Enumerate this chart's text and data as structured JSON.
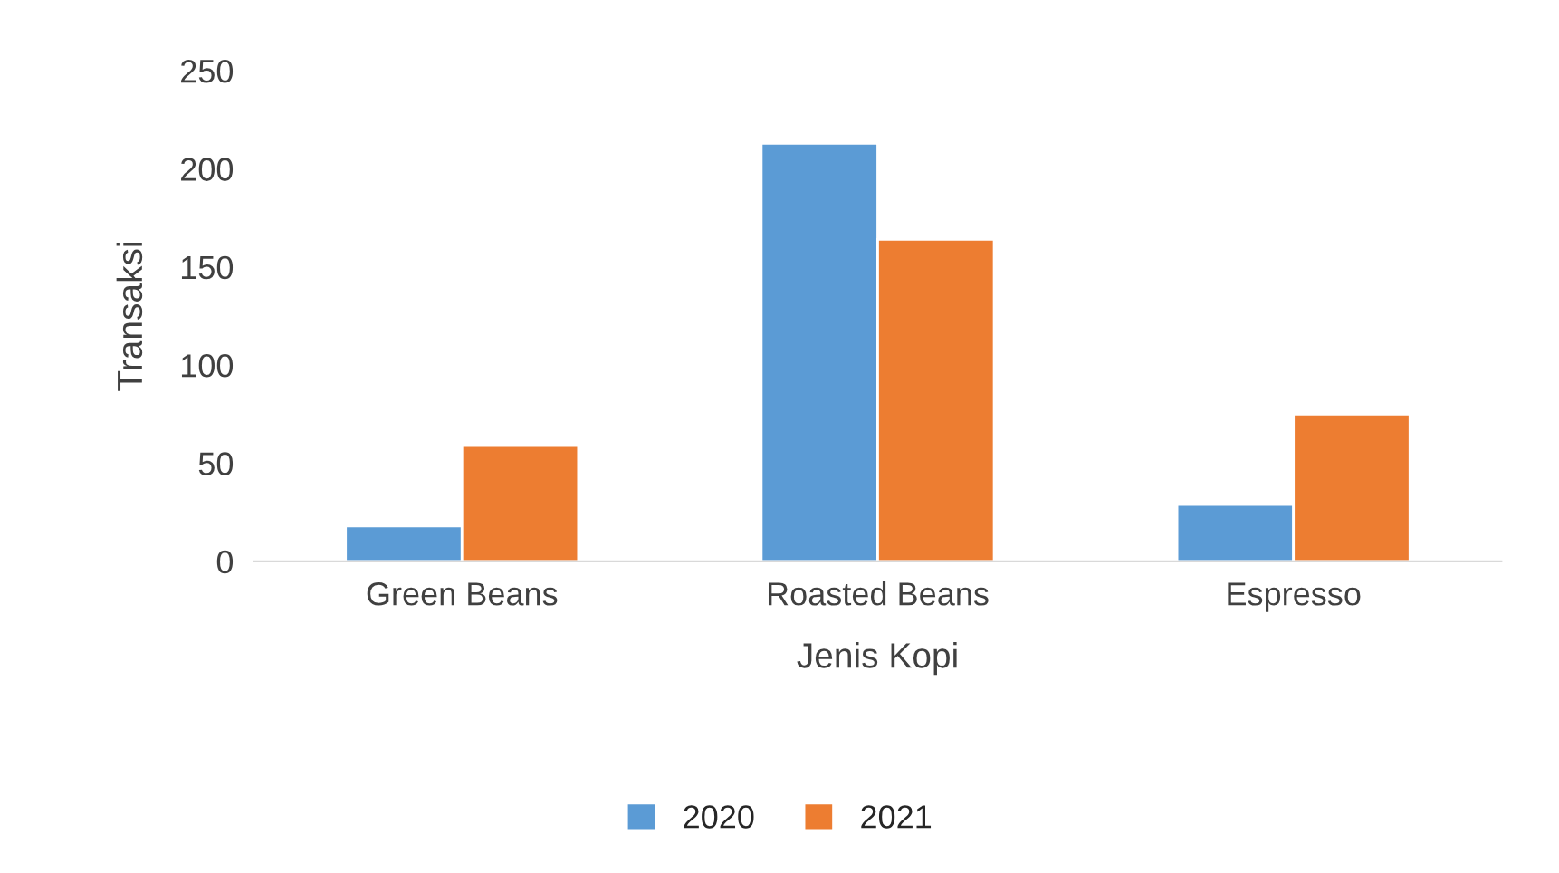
{
  "chart_data": {
    "type": "bar",
    "xlabel": "Jenis Kopi",
    "ylabel": "Transaksi",
    "categories": [
      "Green Beans",
      "Roasted Beans",
      "Espresso"
    ],
    "series": [
      {
        "name": "2020",
        "color": "#5b9bd5",
        "values": [
          18,
          213,
          29
        ]
      },
      {
        "name": "2021",
        "color": "#ed7d31",
        "values": [
          59,
          164,
          75
        ]
      }
    ],
    "ylim": [
      0,
      250
    ],
    "yticks": [
      0,
      50,
      100,
      150,
      200,
      250
    ],
    "grid": false,
    "legend": "bottom"
  }
}
